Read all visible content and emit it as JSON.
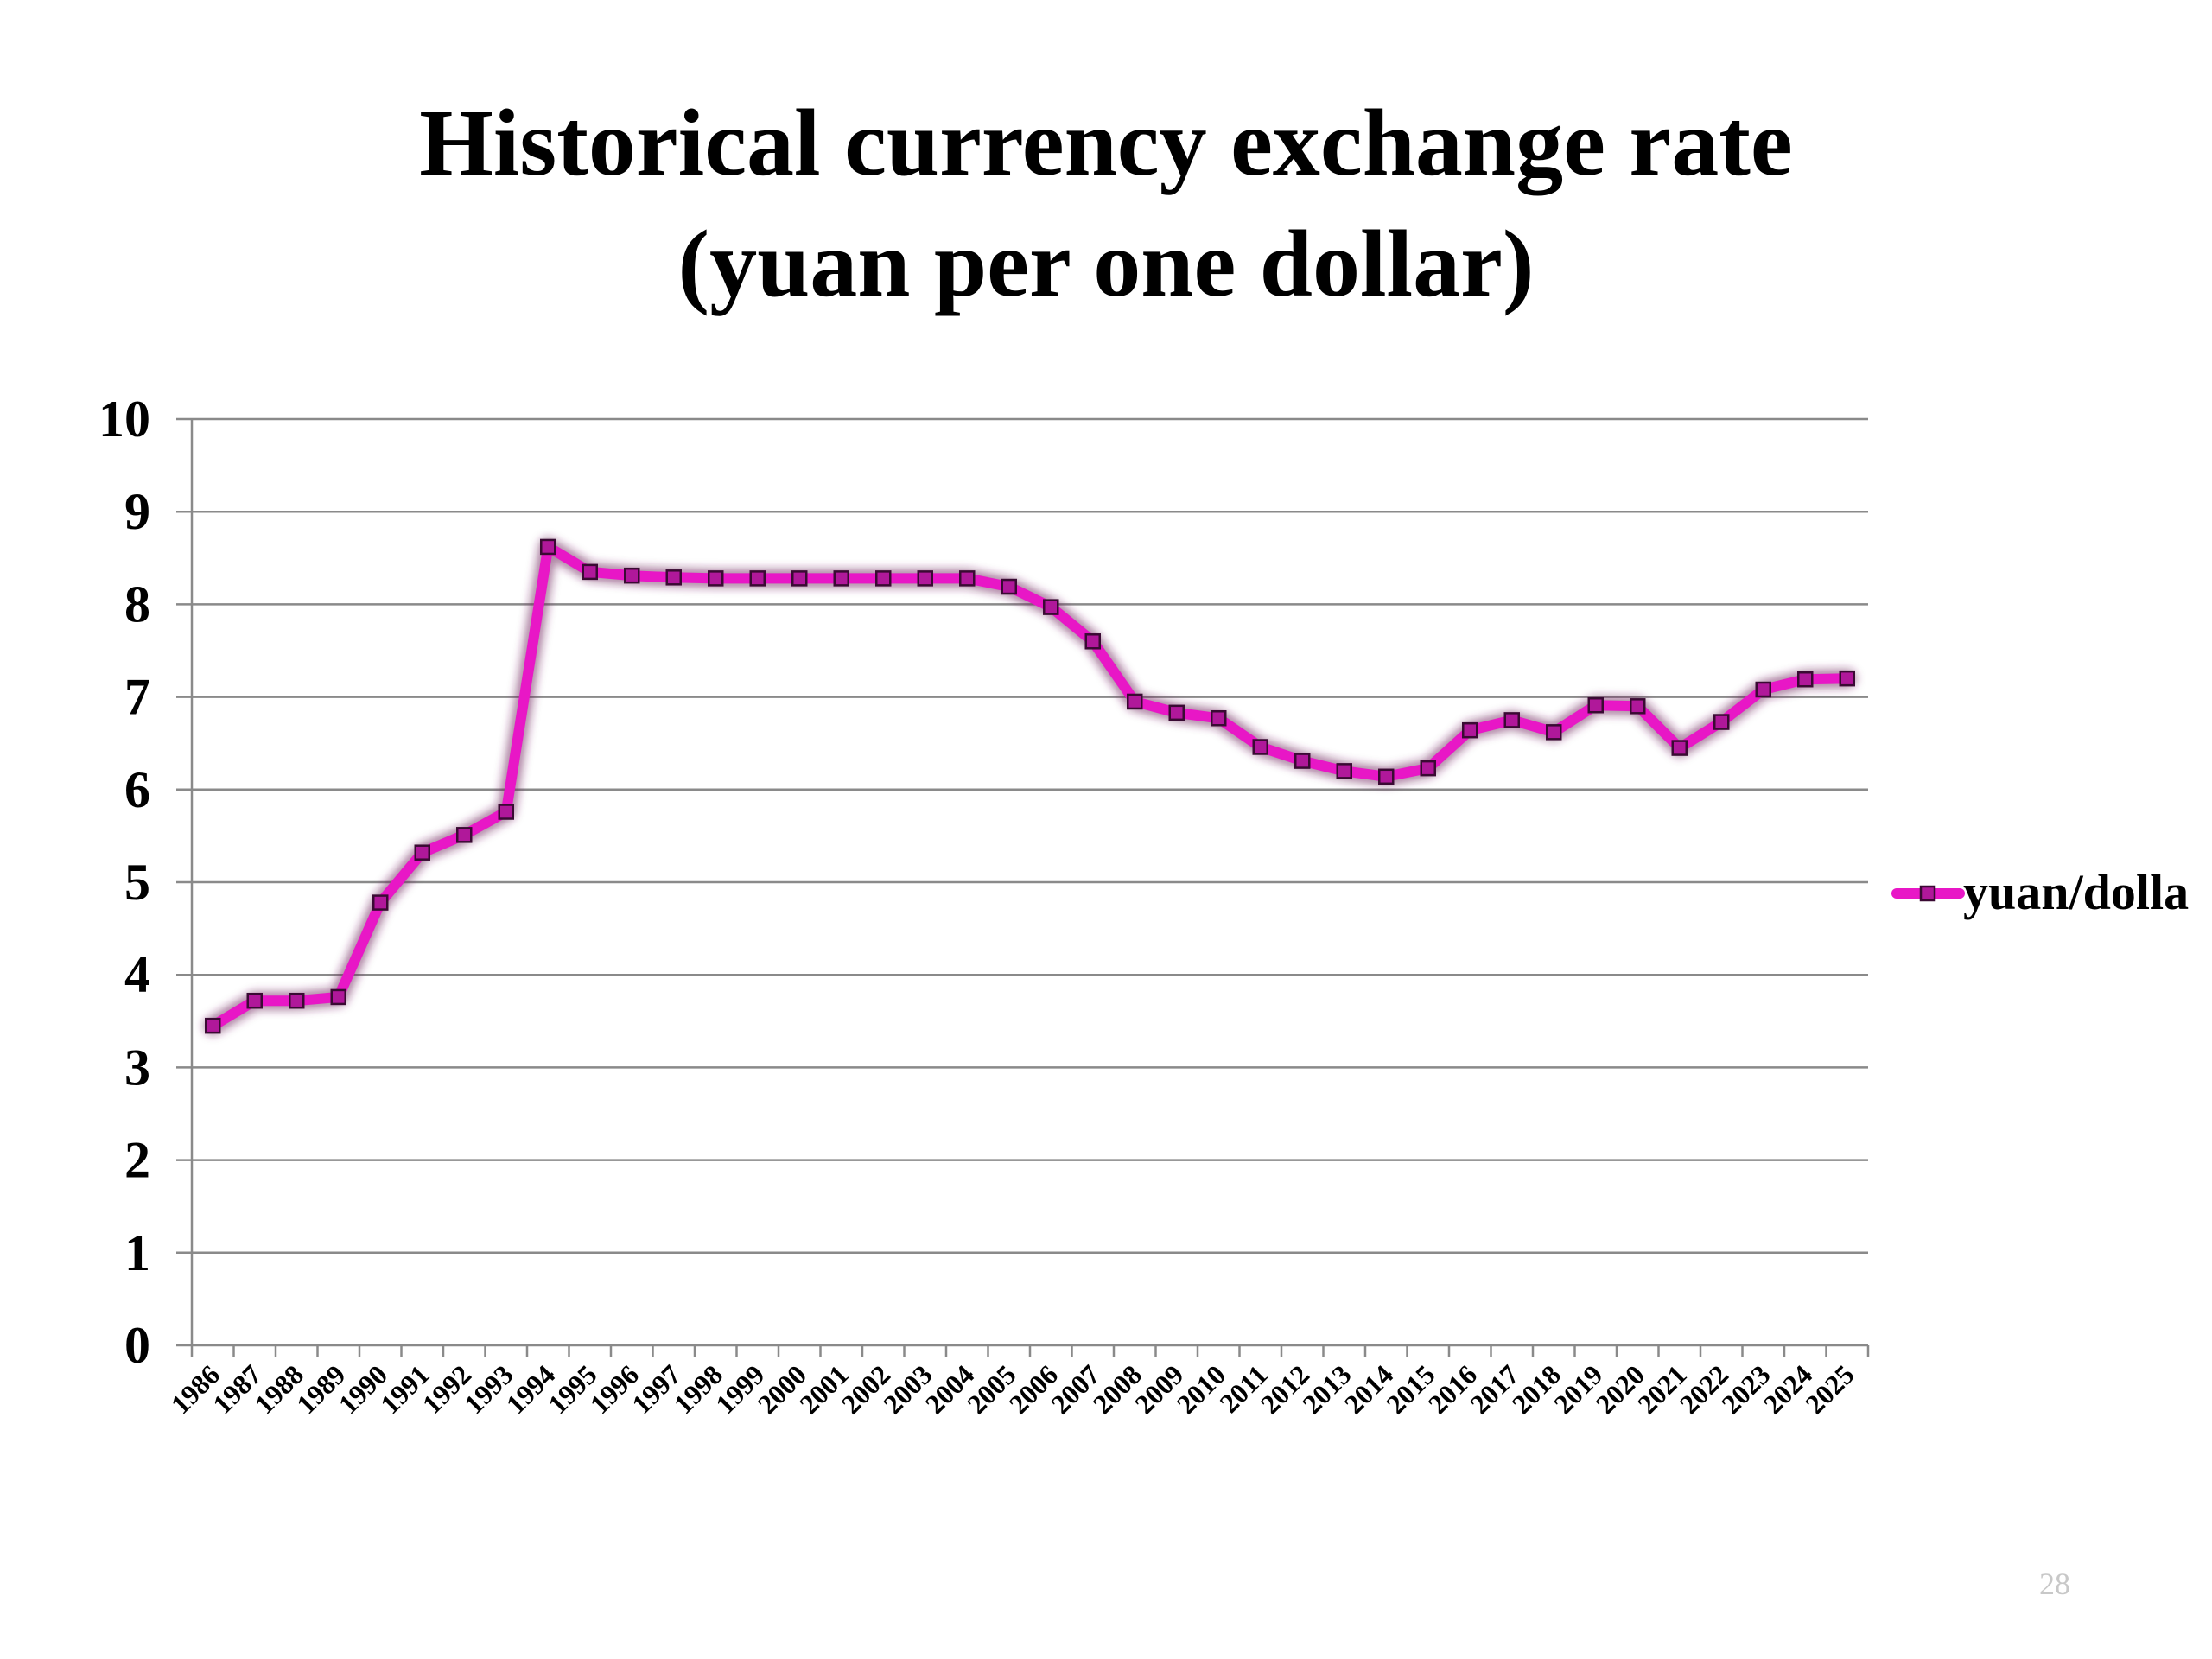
{
  "slide": {
    "title_line1": "Historical currency exchange rate",
    "title_line2": "(yuan per one dollar)",
    "page_number": "28"
  },
  "chart_data": {
    "type": "line",
    "title": "Historical currency exchange rate (yuan per one dollar)",
    "x": [
      "1986",
      "1987",
      "1988",
      "1989",
      "1990",
      "1991",
      "1992",
      "1993",
      "1994",
      "1995",
      "1996",
      "1997",
      "1998",
      "1999",
      "2000",
      "2001",
      "2002",
      "2003",
      "2004",
      "2005",
      "2006",
      "2007",
      "2008",
      "2009",
      "2010",
      "2011",
      "2012",
      "2013",
      "2014",
      "2015",
      "2016",
      "2017",
      "2018",
      "2019",
      "2020",
      "2021",
      "2022",
      "2023",
      "2024",
      "2025"
    ],
    "series": [
      {
        "name": "yuan/dolla",
        "color": "#e817c6",
        "marker": "square",
        "values": [
          3.45,
          3.72,
          3.72,
          3.76,
          4.78,
          5.32,
          5.51,
          5.76,
          8.62,
          8.35,
          8.31,
          8.29,
          8.28,
          8.28,
          8.28,
          8.28,
          8.28,
          8.28,
          8.28,
          8.19,
          7.97,
          7.6,
          6.95,
          6.83,
          6.77,
          6.46,
          6.31,
          6.2,
          6.14,
          6.23,
          6.64,
          6.75,
          6.62,
          6.91,
          6.9,
          6.45,
          6.73,
          7.08,
          7.19,
          7.2
        ]
      }
    ],
    "ylim": [
      0,
      10
    ],
    "yticks": [
      "0",
      "1",
      "2",
      "3",
      "4",
      "5",
      "6",
      "7",
      "8",
      "9",
      "10"
    ],
    "grid": true,
    "legend": "right",
    "xlabel": "",
    "ylabel": ""
  }
}
